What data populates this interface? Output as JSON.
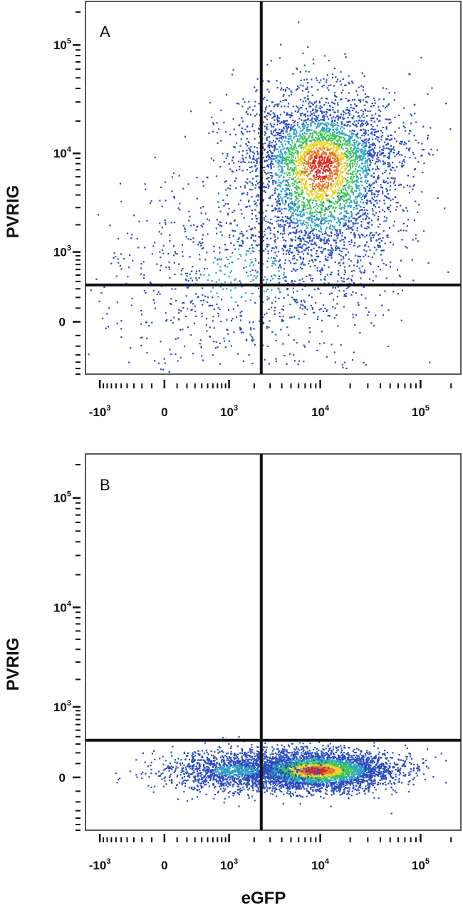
{
  "figure": {
    "xlabel": "eGFP",
    "ylabel": "PVRIG"
  },
  "chart_data": [
    {
      "panel": "A",
      "type": "scatter",
      "style": "flow-cytometry density dot plot",
      "title": "",
      "xlabel": "eGFP",
      "ylabel": "PVRIG",
      "x_scale": "biexponential",
      "y_scale": "biexponential",
      "xlim": [
        -1500,
        250000
      ],
      "ylim": [
        -600,
        250000
      ],
      "x_ticks": [
        {
          "base": "-10",
          "exp": "3",
          "value": -1000
        },
        {
          "base": "0",
          "exp": "",
          "value": 0
        },
        {
          "base": "10",
          "exp": "3",
          "value": 1000
        },
        {
          "base": "10",
          "exp": "4",
          "value": 10000
        },
        {
          "base": "10",
          "exp": "5",
          "value": 100000
        }
      ],
      "y_ticks": [
        {
          "base": "0",
          "exp": "",
          "value": 0
        },
        {
          "base": "10",
          "exp": "3",
          "value": 1000
        },
        {
          "base": "10",
          "exp": "4",
          "value": 10000
        },
        {
          "base": "10",
          "exp": "5",
          "value": 100000
        }
      ],
      "quadrant_gate": {
        "x": 2400,
        "y": 350
      },
      "grid": false,
      "populations": [
        {
          "name": "",
          "center_x": 10000,
          "center_y": 8000,
          "spread": "wide",
          "weight": 0.82
        },
        {
          "name": "",
          "center_x": 1500,
          "center_y": 500,
          "spread": "diffuse",
          "weight": 0.18
        }
      ],
      "density_colors": [
        "#2b4dbf",
        "#2fa3c4",
        "#3cc45a",
        "#e8d22a",
        "#e8772a",
        "#d62b1e"
      ]
    },
    {
      "panel": "B",
      "type": "scatter",
      "style": "flow-cytometry density dot plot",
      "title": "",
      "xlabel": "eGFP",
      "ylabel": "PVRIG",
      "x_scale": "biexponential",
      "y_scale": "biexponential",
      "xlim": [
        -1500,
        250000
      ],
      "ylim": [
        -600,
        250000
      ],
      "x_ticks": [
        {
          "base": "-10",
          "exp": "3",
          "value": -1000
        },
        {
          "base": "0",
          "exp": "",
          "value": 0
        },
        {
          "base": "10",
          "exp": "3",
          "value": 1000
        },
        {
          "base": "10",
          "exp": "4",
          "value": 10000
        },
        {
          "base": "10",
          "exp": "5",
          "value": 100000
        }
      ],
      "y_ticks": [
        {
          "base": "0",
          "exp": "",
          "value": 0
        },
        {
          "base": "10",
          "exp": "3",
          "value": 1000
        },
        {
          "base": "10",
          "exp": "4",
          "value": 10000
        },
        {
          "base": "10",
          "exp": "5",
          "value": 100000
        }
      ],
      "quadrant_gate": {
        "x": 2400,
        "y": 350
      },
      "grid": false,
      "populations": [
        {
          "name": "",
          "center_x": 9000,
          "center_y": 50,
          "spread": "horizontal band",
          "weight": 0.75
        },
        {
          "name": "",
          "center_x": 1200,
          "center_y": 50,
          "spread": "horizontal band",
          "weight": 0.25
        }
      ],
      "density_colors": [
        "#2b4dbf",
        "#2fa3c4",
        "#3cc45a",
        "#e8d22a",
        "#e8772a",
        "#d62b1e"
      ]
    }
  ]
}
